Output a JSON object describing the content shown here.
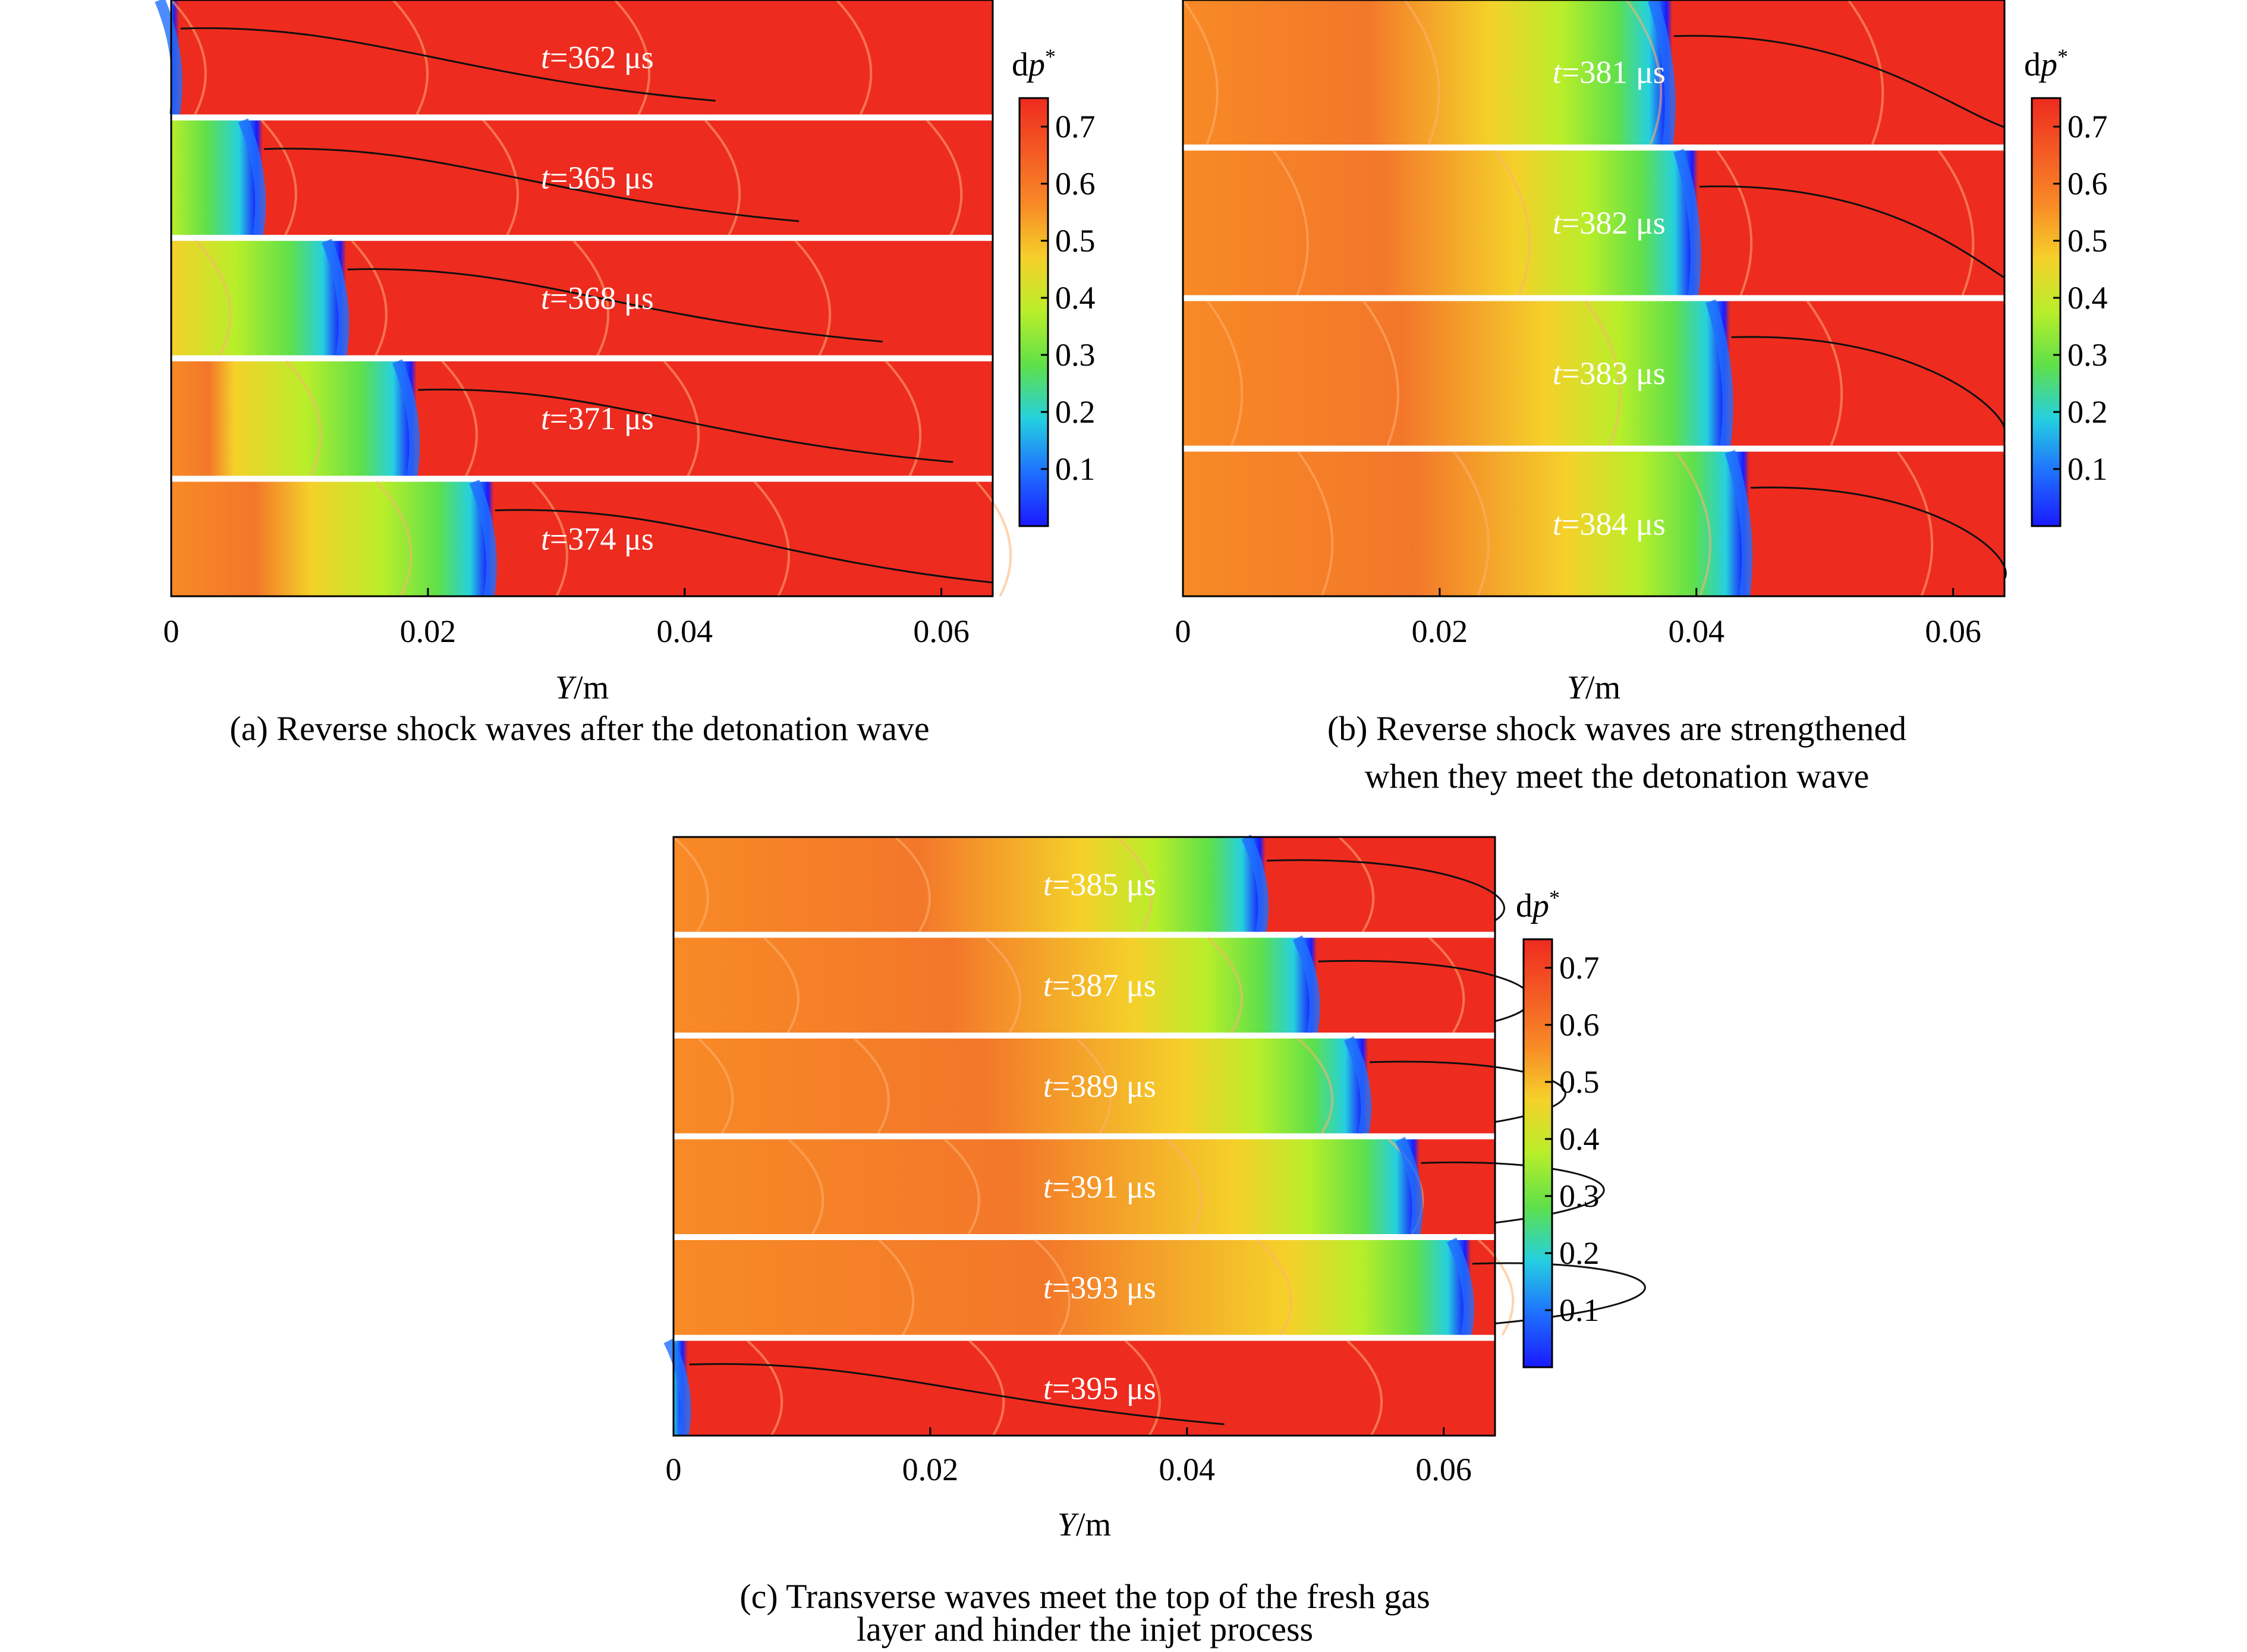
{
  "figure": {
    "colormap": {
      "label_base": "dp",
      "label_sup": "*",
      "ticks": [
        "0.7",
        "0.6",
        "0.5",
        "0.4",
        "0.3",
        "0.2",
        "0.1"
      ],
      "colors": [
        "#1a1aff",
        "#1f6fff",
        "#25d0e0",
        "#5fe04a",
        "#b8ee2a",
        "#f5d12a",
        "#f88a26",
        "#f45a24",
        "#ee2b1f"
      ]
    },
    "axis": {
      "ticks": [
        "0",
        "0.02",
        "0.04",
        "0.06"
      ],
      "label_var": "Y",
      "label_unit": "/m"
    },
    "panels": [
      {
        "id": "a",
        "caption": [
          "(a) Reverse shock waves after the detonation wave"
        ],
        "strips": [
          {
            "t_var": "t",
            "t_text": "=362 μs",
            "front_y": 0.0005
          },
          {
            "t_var": "t",
            "t_text": "=365 μs",
            "front_y": 0.007
          },
          {
            "t_var": "t",
            "t_text": "=368 μs",
            "front_y": 0.0135
          },
          {
            "t_var": "t",
            "t_text": "=371 μs",
            "front_y": 0.019
          },
          {
            "t_var": "t",
            "t_text": "=374 μs",
            "front_y": 0.025
          }
        ]
      },
      {
        "id": "b",
        "caption": [
          "(b) Reverse shock waves are strengthened",
          "when they meet the detonation wave"
        ],
        "strips": [
          {
            "t_var": "t",
            "t_text": "=381 μs",
            "front_y": 0.038
          },
          {
            "t_var": "t",
            "t_text": "=382 μs",
            "front_y": 0.04
          },
          {
            "t_var": "t",
            "t_text": "=383 μs",
            "front_y": 0.0425
          },
          {
            "t_var": "t",
            "t_text": "=384 μs",
            "front_y": 0.044
          }
        ]
      },
      {
        "id": "c",
        "caption": [
          "(c) Transverse waves meet the top of the fresh gas",
          "layer and hinder the injet process"
        ],
        "strips": [
          {
            "t_var": "t",
            "t_text": "=385 μs",
            "front_y": 0.046
          },
          {
            "t_var": "t",
            "t_text": "=387 μs",
            "front_y": 0.05
          },
          {
            "t_var": "t",
            "t_text": "=389 μs",
            "front_y": 0.054
          },
          {
            "t_var": "t",
            "t_text": "=391 μs",
            "front_y": 0.058
          },
          {
            "t_var": "t",
            "t_text": "=393 μs",
            "front_y": 0.062
          },
          {
            "t_var": "t",
            "t_text": "=395 μs",
            "front_y": 0.001
          }
        ]
      }
    ]
  }
}
